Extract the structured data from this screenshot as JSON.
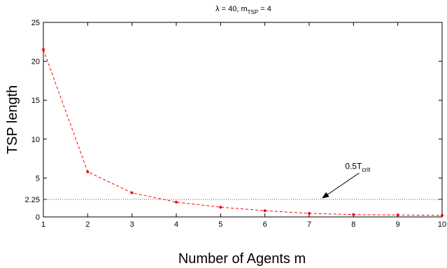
{
  "chart_data": {
    "type": "line",
    "title": {
      "prefix": "λ = 40, m",
      "subscript": "TSP",
      "suffix": " = 4"
    },
    "xlabel": "Number of Agents m",
    "ylabel": "TSP length",
    "xlim": [
      1,
      10
    ],
    "ylim": [
      0,
      25
    ],
    "x_ticks": [
      1,
      2,
      3,
      4,
      5,
      6,
      7,
      8,
      9,
      10
    ],
    "y_ticks": [
      0,
      2.25,
      5,
      10,
      15,
      20,
      25
    ],
    "grid": false,
    "series": [
      {
        "x": [
          1,
          2,
          3,
          4,
          5,
          6,
          7,
          8,
          9,
          10
        ],
        "values": [
          21.5,
          5.8,
          3.1,
          1.9,
          1.25,
          0.8,
          0.45,
          0.3,
          0.25,
          0.2
        ],
        "color": "#ff0000",
        "line_style": "dashed",
        "marker": "dot"
      }
    ],
    "reference_line": {
      "y": 2.25,
      "color": "#555555",
      "line_style": "dotted"
    },
    "annotation": {
      "text": "0.5T",
      "subscript": "crit",
      "arrow_target": {
        "x": 7.3,
        "y": 2.25
      },
      "text_anchor": {
        "x": 8.0,
        "y": 6.0
      }
    }
  }
}
